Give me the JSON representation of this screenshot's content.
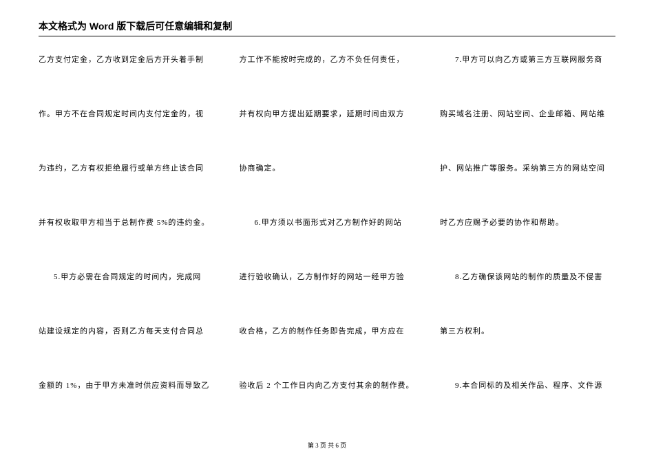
{
  "title": "本文格式为 Word 版下载后可任意编辑和复制",
  "footer": "第 3 页 共 6 页",
  "columns": [
    {
      "lines": [
        {
          "text": "乙方支付定金，乙方收到定金后方开头着手制",
          "indent": false
        },
        {
          "text": "作。甲方不在合同规定时间内支付定金的，视",
          "indent": false
        },
        {
          "text": "为违约，乙方有权拒绝履行或单方终止该合同",
          "indent": false
        },
        {
          "text": "并有权收取甲方相当于总制作费 5%的违约金。",
          "indent": false
        },
        {
          "text": "5.甲方必需在合同规定的时间内，完成网",
          "indent": true
        },
        {
          "text": "站建设规定的内容，否则乙方每天支付合同总",
          "indent": false
        },
        {
          "text": "金额的 1%，由于甲方未准时供应资料而导致乙",
          "indent": false
        }
      ]
    },
    {
      "lines": [
        {
          "text": "方工作不能按时完成的，乙方不负任何责任，",
          "indent": false
        },
        {
          "text": "并有权向甲方提出延期要求，延期时间由双方",
          "indent": false
        },
        {
          "text": "协商确定。",
          "indent": false
        },
        {
          "text": "6.甲方须以书面形式对乙方制作好的网站",
          "indent": true
        },
        {
          "text": "进行验收确认，乙方制作好的网站一经甲方验",
          "indent": false
        },
        {
          "text": "收合格，乙方的制作任务即告完成，甲方应在",
          "indent": false
        },
        {
          "text": "验收后 2 个工作日内向乙方支付其余的制作费。",
          "indent": false
        }
      ]
    },
    {
      "lines": [
        {
          "text": "7.甲方可以向乙方或第三方互联网服务商",
          "indent": true
        },
        {
          "text": "购买域名注册、网站空间、企业邮箱、网站维",
          "indent": false
        },
        {
          "text": "护、网站推广等服务。采纳第三方的网站空间",
          "indent": false
        },
        {
          "text": "时乙方应赐予必要的协作和帮助。",
          "indent": false
        },
        {
          "text": "8.乙方确保该网站的制作的质量及不侵害",
          "indent": true
        },
        {
          "text": "第三方权利。",
          "indent": false
        },
        {
          "text": "9.本合同标的及相关作品、程序、文件源",
          "indent": true
        }
      ]
    }
  ]
}
